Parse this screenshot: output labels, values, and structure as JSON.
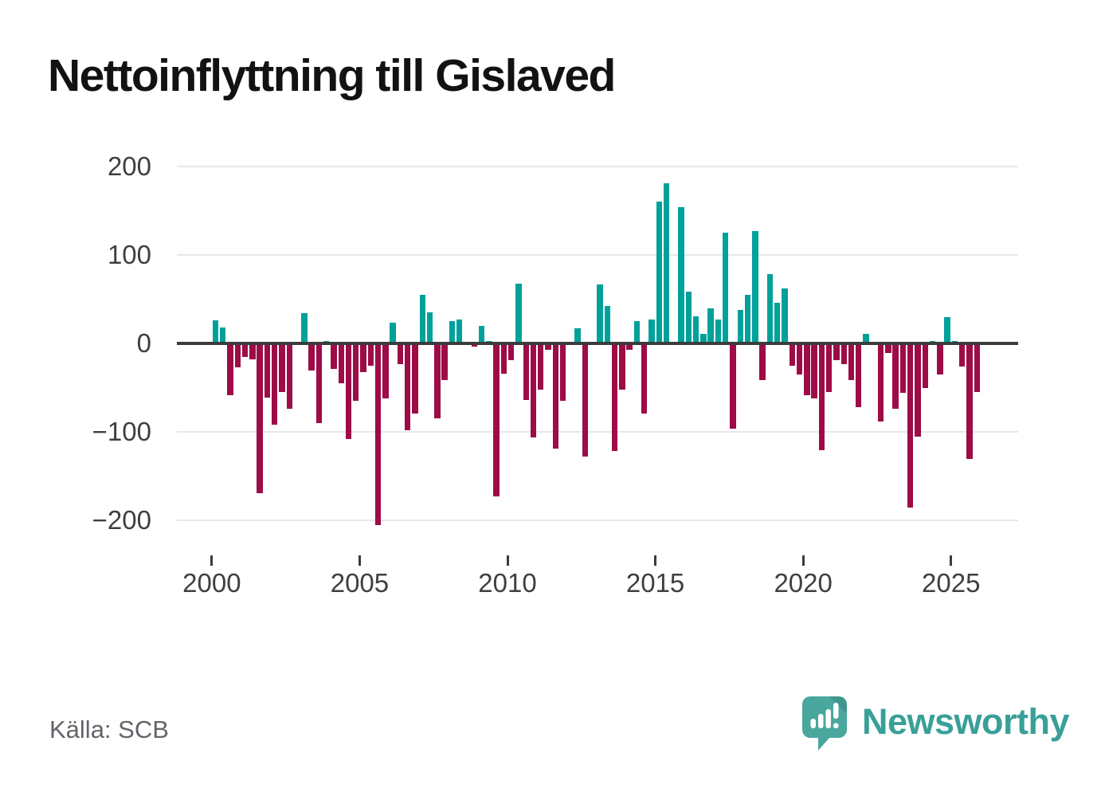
{
  "title": "Nettoinflyttning till Gislaved",
  "source": "Källa: SCB",
  "logo": {
    "text": "Newsworthy",
    "text_color": "#38A098",
    "icon_color": "#4AA79E",
    "icon_fold_color": "rgba(0,60,55,0.16)",
    "icon_mark_color": "#ffffff"
  },
  "axis_colors": {
    "grid": "#e7e7e7",
    "zero_line": "#3c3c3c",
    "tick": "#3c3c3c",
    "label": "#3f3f3f"
  },
  "chart_data": {
    "type": "bar",
    "title": "Nettoinflyttning till Gislaved",
    "xlabel": "",
    "ylabel": "",
    "frequency": "quarterly",
    "start": "2000Q1",
    "end": "2025Q4",
    "grid": true,
    "legend": false,
    "y_ticks": [
      200,
      100,
      0,
      -100,
      -200
    ],
    "ylim": [
      -230,
      215
    ],
    "x_tick_labels": [
      "2000",
      "2005",
      "2010",
      "2015",
      "2020",
      "2025"
    ],
    "colors": {
      "positive": "#00A19A",
      "negative": "#9D0C46"
    },
    "series": [
      {
        "year": 2000,
        "values": [
          26,
          18,
          -59,
          -27
        ]
      },
      {
        "year": 2001,
        "values": [
          -15,
          -18,
          -169,
          -61
        ]
      },
      {
        "year": 2002,
        "values": [
          -92,
          -55,
          -74,
          0
        ]
      },
      {
        "year": 2003,
        "values": [
          34,
          -31,
          -90,
          3
        ]
      },
      {
        "year": 2004,
        "values": [
          -29,
          -45,
          -108,
          -65
        ]
      },
      {
        "year": 2005,
        "values": [
          -32,
          -25,
          -205,
          -62
        ]
      },
      {
        "year": 2006,
        "values": [
          23,
          -23,
          -98,
          -79
        ]
      },
      {
        "year": 2007,
        "values": [
          55,
          35,
          -85,
          -41
        ]
      },
      {
        "year": 2008,
        "values": [
          25,
          27,
          0,
          -4
        ]
      },
      {
        "year": 2009,
        "values": [
          20,
          3,
          -173,
          -34
        ]
      },
      {
        "year": 2010,
        "values": [
          -19,
          68,
          -64,
          -106
        ]
      },
      {
        "year": 2011,
        "values": [
          -52,
          -7,
          -119,
          -65
        ]
      },
      {
        "year": 2012,
        "values": [
          0,
          17,
          -128,
          0
        ]
      },
      {
        "year": 2013,
        "values": [
          67,
          42,
          -122,
          -52
        ]
      },
      {
        "year": 2014,
        "values": [
          -7,
          25,
          -79,
          27
        ]
      },
      {
        "year": 2015,
        "values": [
          160,
          181,
          0,
          154
        ]
      },
      {
        "year": 2016,
        "values": [
          59,
          31,
          11,
          40
        ]
      },
      {
        "year": 2017,
        "values": [
          27,
          125,
          -96,
          38
        ]
      },
      {
        "year": 2018,
        "values": [
          55,
          127,
          -41,
          78
        ]
      },
      {
        "year": 2019,
        "values": [
          46,
          62,
          -25,
          -35
        ]
      },
      {
        "year": 2020,
        "values": [
          -59,
          -62,
          -121,
          -55
        ]
      },
      {
        "year": 2021,
        "values": [
          -19,
          -23,
          -41,
          -72
        ]
      },
      {
        "year": 2022,
        "values": [
          11,
          0,
          -88,
          -11
        ]
      },
      {
        "year": 2023,
        "values": [
          -74,
          -56,
          -186,
          -105
        ]
      },
      {
        "year": 2024,
        "values": [
          -50,
          3,
          -35,
          30
        ]
      },
      {
        "year": 2025,
        "values": [
          3,
          -26,
          -131,
          -55
        ]
      }
    ]
  }
}
